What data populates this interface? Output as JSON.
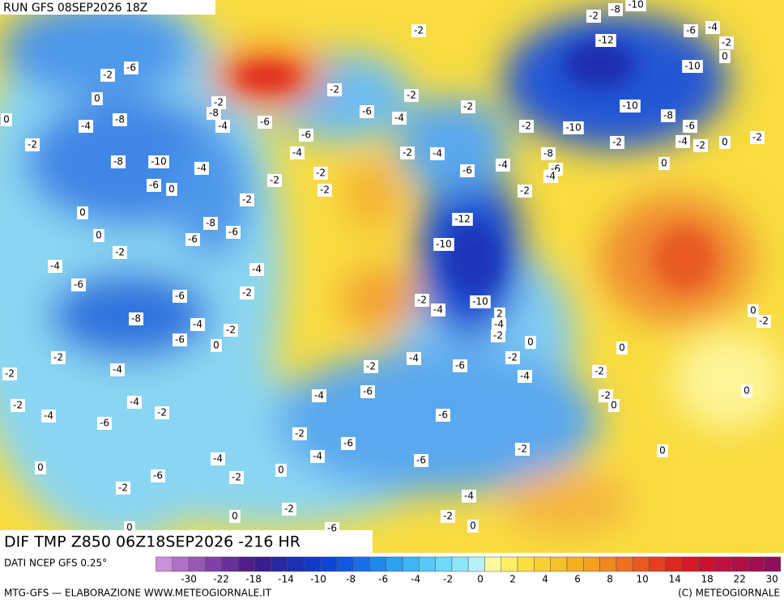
{
  "header": {
    "run": "RUN GFS 08SEP2026 18Z"
  },
  "map": {
    "title": "DIF TMP Z850 06Z18SEP2026 -216 HR",
    "labels": [
      "-2",
      "-2",
      "-8",
      "-10",
      "-6",
      "-4",
      "-2",
      "-12",
      "-10",
      "0",
      "-2",
      "-6",
      "0",
      "-2",
      "-2",
      "-2",
      "-6",
      "-4",
      "-2",
      "-10",
      "-8",
      "-6",
      "-10",
      "-2",
      "-4",
      "-2",
      "0",
      "-2",
      "0",
      "-4",
      "-8",
      "-2",
      "-2",
      "-8",
      "-4",
      "-6",
      "-6",
      "-4",
      "-2",
      "-4",
      "-8",
      "0",
      "-8",
      "-10",
      "-4",
      "-6",
      "0",
      "-6",
      "-4",
      "-6",
      "-4",
      "-2",
      "-2",
      "-2",
      "-2",
      "0",
      "-2",
      "-12",
      "-8",
      "-6",
      "0",
      "-6",
      "-10",
      "-2",
      "-4",
      "-4",
      "-6",
      "-6",
      "-2",
      "-2",
      "-4",
      "-10",
      "2",
      "-4",
      "-2",
      "-8",
      "-4",
      "-2",
      "-6",
      "0",
      "0",
      "0",
      "0",
      "-2",
      "-2",
      "-4",
      "-2",
      "-6",
      "-4",
      "-2",
      "-2",
      "-4",
      "-2",
      "-6",
      "-4",
      "-4",
      "-2",
      "-2",
      "-2",
      "0",
      "0",
      "-4",
      "-6",
      "-6",
      "-2",
      "-6",
      "-2",
      "0",
      "-4",
      "-4",
      "-6",
      "0",
      "0",
      "-6",
      "-2",
      "-2",
      "-4",
      "-2",
      "-2",
      "0",
      "0",
      "-6",
      "0"
    ]
  },
  "footer": {
    "source": "DATI NCEP GFS 0.25°",
    "credit": "MTG-GFS — ELABORAZIONE WWW.METEOGIORNALE.IT",
    "copyright": "(C) METEOGIORNALE",
    "scale": [
      "-30",
      "-22",
      "-18",
      "-14",
      "-10",
      "-8",
      "-6",
      "-4",
      "-2",
      "0",
      "2",
      "4",
      "6",
      "8",
      "10",
      "14",
      "18",
      "22",
      "30"
    ]
  }
}
